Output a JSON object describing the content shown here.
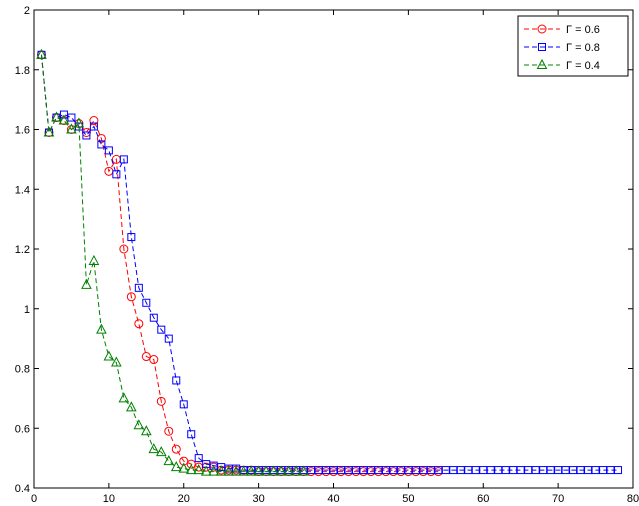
{
  "chart_data": {
    "type": "line",
    "title": "",
    "xlabel": "",
    "ylabel": "",
    "xlim": [
      0,
      80
    ],
    "ylim": [
      0.4,
      2
    ],
    "xticks": [
      0,
      10,
      20,
      30,
      40,
      50,
      60,
      70,
      80
    ],
    "yticks": [
      0.4,
      0.6,
      0.8,
      1,
      1.2,
      1.4,
      1.6,
      1.8,
      2
    ],
    "xtick_labels": [
      "0",
      "10",
      "20",
      "30",
      "40",
      "50",
      "60",
      "70",
      "80"
    ],
    "ytick_labels": [
      "0.4",
      "0.6",
      "0.8",
      "1",
      "1.2",
      "1.4",
      "1.6",
      "1.8",
      "2"
    ],
    "grid": false,
    "legend_position": "top-right",
    "series": [
      {
        "name": "Γ = 0.6",
        "color": "#ff0000",
        "marker": "circle",
        "x": [
          1,
          2,
          3,
          4,
          5,
          6,
          7,
          8,
          9,
          10,
          11,
          12,
          13,
          14,
          15,
          16,
          17,
          18,
          19,
          20,
          21,
          22,
          23,
          24,
          25,
          26,
          27,
          28,
          29,
          30,
          31,
          32,
          33,
          34,
          35,
          36,
          37,
          38,
          39,
          40,
          41,
          42,
          43,
          44,
          45,
          46,
          47,
          48,
          49,
          50,
          51,
          52,
          53,
          54
        ],
        "y": [
          1.85,
          1.59,
          1.64,
          1.63,
          1.6,
          1.62,
          1.59,
          1.63,
          1.57,
          1.46,
          1.5,
          1.2,
          1.04,
          0.95,
          0.84,
          0.83,
          0.69,
          0.59,
          0.53,
          0.49,
          0.48,
          0.47,
          0.47,
          0.47,
          0.46,
          0.46,
          0.46,
          0.46,
          0.46,
          0.455,
          0.455,
          0.455,
          0.455,
          0.455,
          0.455,
          0.455,
          0.455,
          0.455,
          0.455,
          0.455,
          0.455,
          0.455,
          0.455,
          0.455,
          0.455,
          0.455,
          0.455,
          0.455,
          0.455,
          0.455,
          0.455,
          0.455,
          0.455,
          0.455
        ]
      },
      {
        "name": "Γ = 0.8",
        "color": "#0000ff",
        "marker": "square",
        "x": [
          1,
          2,
          3,
          4,
          5,
          6,
          7,
          8,
          9,
          10,
          11,
          12,
          13,
          14,
          15,
          16,
          17,
          18,
          19,
          20,
          21,
          22,
          23,
          24,
          25,
          26,
          27,
          28,
          29,
          30,
          31,
          32,
          33,
          34,
          35,
          36,
          37,
          38,
          39,
          40,
          41,
          42,
          43,
          44,
          45,
          46,
          47,
          48,
          49,
          50,
          51,
          52,
          53,
          54,
          55,
          56,
          57,
          58,
          59,
          60,
          61,
          62,
          63,
          64,
          65,
          66,
          67,
          68,
          69,
          70,
          71,
          72,
          73,
          74,
          75,
          76,
          77,
          78
        ],
        "y": [
          1.85,
          1.59,
          1.64,
          1.65,
          1.64,
          1.61,
          1.58,
          1.61,
          1.55,
          1.53,
          1.45,
          1.5,
          1.24,
          1.07,
          1.02,
          0.97,
          0.93,
          0.9,
          0.76,
          0.68,
          0.58,
          0.5,
          0.48,
          0.475,
          0.47,
          0.465,
          0.465,
          0.46,
          0.46,
          0.46,
          0.46,
          0.46,
          0.46,
          0.46,
          0.46,
          0.46,
          0.46,
          0.46,
          0.46,
          0.46,
          0.46,
          0.46,
          0.46,
          0.46,
          0.46,
          0.46,
          0.46,
          0.46,
          0.46,
          0.46,
          0.46,
          0.46,
          0.46,
          0.46,
          0.46,
          0.46,
          0.46,
          0.46,
          0.46,
          0.46,
          0.46,
          0.46,
          0.46,
          0.46,
          0.46,
          0.46,
          0.46,
          0.46,
          0.46,
          0.46,
          0.46,
          0.46,
          0.46,
          0.46,
          0.46,
          0.46,
          0.46,
          0.46
        ]
      },
      {
        "name": "Γ = 0.4",
        "color": "#008000",
        "marker": "triangle",
        "x": [
          1,
          2,
          3,
          4,
          5,
          6,
          7,
          8,
          9,
          10,
          11,
          12,
          13,
          14,
          15,
          16,
          17,
          18,
          19,
          20,
          21,
          22,
          23,
          24,
          25,
          26,
          27,
          28,
          29,
          30,
          31,
          32,
          33,
          34,
          35,
          36
        ],
        "y": [
          1.85,
          1.59,
          1.64,
          1.63,
          1.6,
          1.62,
          1.08,
          1.16,
          0.93,
          0.84,
          0.82,
          0.7,
          0.67,
          0.61,
          0.59,
          0.53,
          0.52,
          0.49,
          0.47,
          0.465,
          0.46,
          0.46,
          0.455,
          0.455,
          0.455,
          0.455,
          0.455,
          0.455,
          0.455,
          0.455,
          0.455,
          0.455,
          0.455,
          0.455,
          0.455,
          0.455
        ]
      }
    ]
  }
}
